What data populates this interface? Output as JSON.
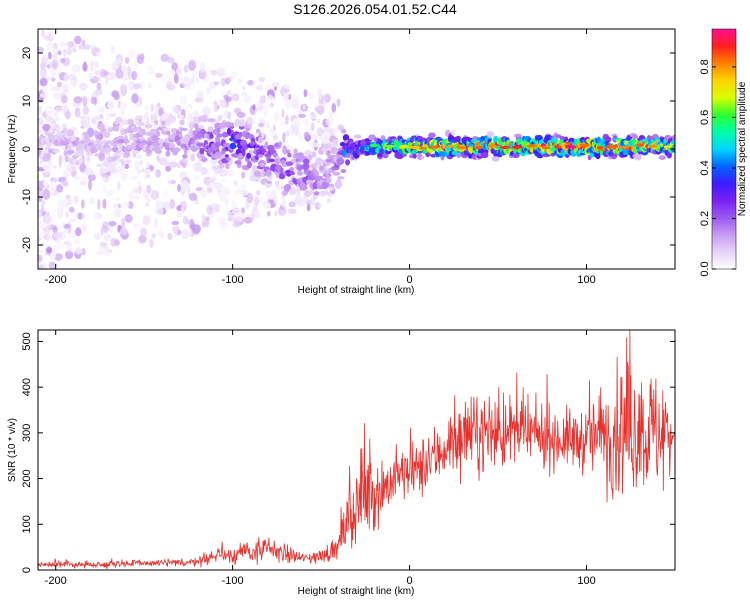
{
  "figure_title": "S126.2026.054.01.52.C44",
  "colors": {
    "snr_line": "#e8302c",
    "axes": "#000000",
    "colormap": [
      "#ffffff",
      "#e6d2f8",
      "#c99cf2",
      "#9b59f0",
      "#7a1ff2",
      "#3b1cff",
      "#0066ff",
      "#00d6ff",
      "#00ffa8",
      "#30ff30",
      "#d8ff00",
      "#ffd400",
      "#ff8000",
      "#ff2020",
      "#ff1090"
    ]
  },
  "chart_data": [
    {
      "type": "heatmap",
      "title": "",
      "xlabel": "Height of straight line (km)",
      "ylabel": "Frequency (Hz)",
      "xlim": [
        -210,
        150
      ],
      "ylim": [
        -25,
        25
      ],
      "xticks": [
        -200,
        -100,
        0,
        100
      ],
      "yticks": [
        -20,
        -10,
        0,
        10,
        20
      ],
      "colorbar": {
        "label": "Normalized spectral amplitude",
        "range": [
          0,
          0.95
        ],
        "ticks": [
          "0.0",
          "0.2",
          "0.4",
          "0.6",
          "0.8"
        ]
      },
      "ridge": {
        "x": [
          -210,
          -180,
          -150,
          -130,
          -110,
          -100,
          -90,
          -80,
          -70,
          -60,
          -50,
          -45,
          -40,
          -38,
          -35,
          -30,
          -20,
          -10,
          0,
          20,
          40,
          60,
          80,
          100,
          120,
          140,
          150
        ],
        "freq": [
          1,
          1,
          2,
          1.5,
          1,
          1,
          0,
          -2,
          -4,
          -5,
          -6,
          -5,
          -2,
          -1,
          0,
          0,
          0.5,
          0.5,
          0.5,
          0.5,
          0.5,
          0.5,
          0.5,
          0.5,
          0.5,
          0.8,
          0.5
        ],
        "peak_amplitude": [
          0.1,
          0.12,
          0.14,
          0.15,
          0.25,
          0.35,
          0.3,
          0.25,
          0.25,
          0.22,
          0.2,
          0.2,
          0.18,
          0.35,
          0.4,
          0.45,
          0.55,
          0.65,
          0.75,
          0.8,
          0.8,
          0.85,
          0.85,
          0.85,
          0.85,
          0.75,
          0.6
        ]
      },
      "noise_region_x": [
        -210,
        -40
      ]
    },
    {
      "type": "line",
      "title": "",
      "xlabel": "Height of straight line (km)",
      "ylabel": "SNR (10 * v/v)",
      "xlim": [
        -210,
        150
      ],
      "ylim": [
        0,
        525
      ],
      "xticks": [
        -200,
        -100,
        0,
        100
      ],
      "yticks": [
        0,
        100,
        200,
        300,
        400,
        500
      ],
      "series": [
        {
          "x": [
            -210,
            -180,
            -150,
            -130,
            -120,
            -110,
            -100,
            -90,
            -80,
            -70,
            -60,
            -50,
            -40,
            -35,
            -30,
            -25,
            -20,
            -15,
            -10,
            -5,
            0,
            10,
            20,
            30,
            40,
            50,
            60,
            70,
            80,
            90,
            100,
            110,
            120,
            130,
            140,
            150
          ],
          "values": [
            12,
            12,
            15,
            15,
            20,
            30,
            35,
            40,
            45,
            35,
            25,
            30,
            50,
            110,
            140,
            160,
            170,
            180,
            195,
            210,
            210,
            230,
            270,
            290,
            300,
            300,
            300,
            295,
            290,
            285,
            285,
            300,
            300,
            310,
            300,
            300
          ],
          "spread": [
            6,
            6,
            8,
            8,
            10,
            15,
            20,
            22,
            25,
            18,
            12,
            15,
            25,
            60,
            80,
            80,
            75,
            65,
            60,
            55,
            55,
            60,
            65,
            70,
            75,
            75,
            70,
            65,
            60,
            60,
            65,
            110,
            130,
            130,
            120,
            110
          ]
        }
      ]
    }
  ]
}
